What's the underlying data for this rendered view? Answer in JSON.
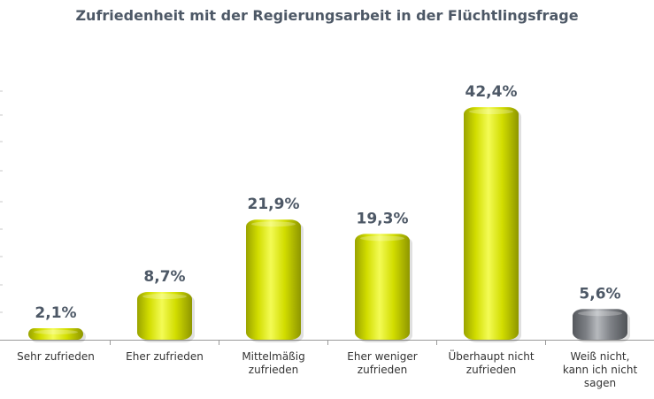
{
  "chart_data": {
    "type": "bar",
    "title": "Zufriedenheit mit der Regierungsarbeit in der Flüchtlingsfrage",
    "xlabel": "",
    "ylabel": "",
    "ylim": [
      0,
      50
    ],
    "grid": false,
    "legend": "none",
    "categories": [
      "Sehr zufrieden",
      "Eher zufrieden",
      "Mittelmäßig zufrieden",
      "Eher weniger zufrieden",
      "Überhaupt nicht zufrieden",
      "Weiß nicht, kann ich nicht sagen"
    ],
    "category_lines": [
      [
        "Sehr zufrieden"
      ],
      [
        "Eher zufrieden"
      ],
      [
        "Mittelmäßig",
        "zufrieden"
      ],
      [
        "Eher weniger",
        "zufrieden"
      ],
      [
        "Überhaupt nicht",
        "zufrieden"
      ],
      [
        "Weiß nicht,",
        "kann ich nicht",
        "sagen"
      ]
    ],
    "values": [
      2.1,
      8.7,
      21.9,
      19.3,
      42.4,
      5.6
    ],
    "value_labels": [
      "2,1%",
      "8,7%",
      "21,9%",
      "19,3%",
      "42,4%",
      "5,6%"
    ],
    "colors": [
      "#d4e000",
      "#d4e000",
      "#d4e000",
      "#d4e000",
      "#d4e000",
      "#7c7f84"
    ]
  }
}
